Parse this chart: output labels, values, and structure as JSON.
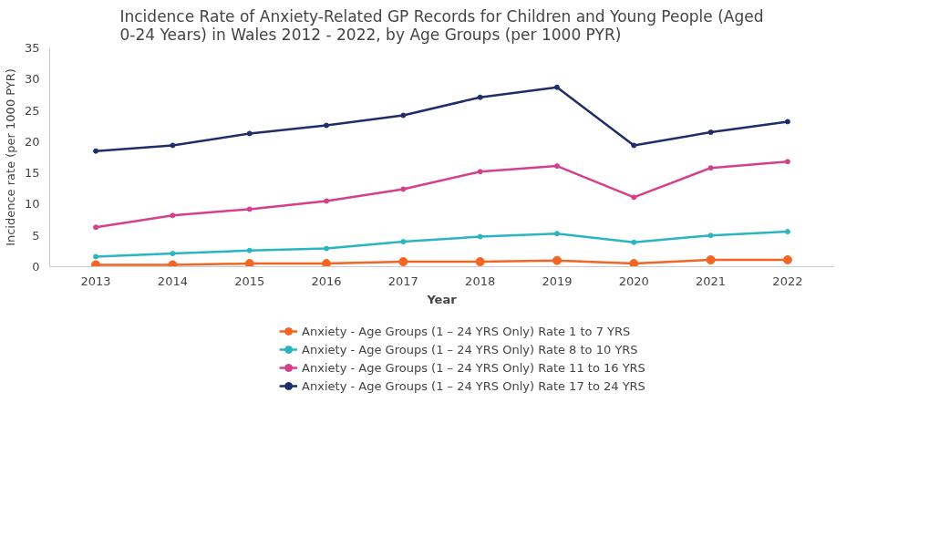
{
  "chart_data": {
    "type": "line",
    "title": "Incidence Rate of Anxiety-Related GP Records for Children and Young People (Aged 0-24 Years) in Wales 2012 - 2022, by Age Groups (per 1000 PYR)",
    "xlabel": "Year",
    "ylabel": "Incidence rate (per 1000 PYR)",
    "categories": [
      "2013",
      "2014",
      "2015",
      "2016",
      "2017",
      "2018",
      "2019",
      "2020",
      "2021",
      "2022"
    ],
    "series": [
      {
        "name": "Anxiety - Age Groups (1 – 24 YRS Only) Rate 1 to 7 YRS",
        "color": "#f26522",
        "values": [
          0.3,
          0.3,
          0.5,
          0.5,
          0.8,
          0.8,
          1.0,
          0.5,
          1.1,
          1.1
        ]
      },
      {
        "name": "Anxiety - Age Groups (1 – 24 YRS Only) Rate 8 to 10 YRS",
        "color": "#2bb5c0",
        "values": [
          1.6,
          2.1,
          2.6,
          2.9,
          4.0,
          4.8,
          5.3,
          3.9,
          5.0,
          5.6
        ]
      },
      {
        "name": "Anxiety - Age Groups (1 – 24 YRS Only) Rate 11 to 16 YRS",
        "color": "#d63f8c",
        "values": [
          6.3,
          8.2,
          9.2,
          10.5,
          12.4,
          15.2,
          16.1,
          11.1,
          15.8,
          16.8
        ]
      },
      {
        "name": "Anxiety - Age Groups (1 – 24 YRS Only) Rate 17 to 24 YRS",
        "color": "#1f2e6b",
        "values": [
          18.5,
          19.4,
          21.3,
          22.6,
          24.2,
          27.1,
          28.7,
          19.4,
          21.5,
          23.2
        ]
      }
    ],
    "ylim": [
      0,
      35
    ],
    "yticks": [
      0,
      5,
      10,
      15,
      20,
      25,
      30,
      35
    ],
    "grid": false,
    "legend": "bottom",
    "marker": "circle",
    "line_style": "solid"
  }
}
